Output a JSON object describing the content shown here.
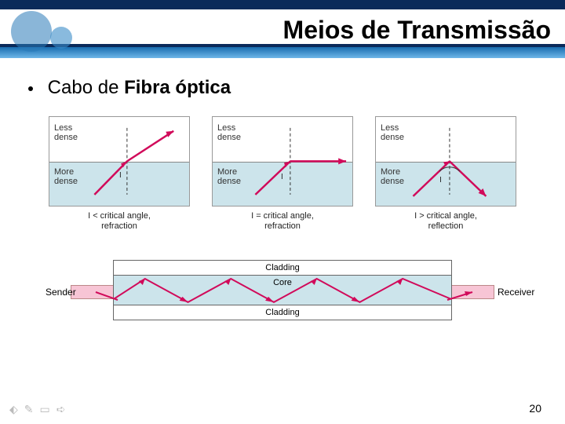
{
  "header": {
    "title": "Meios de Transmissão",
    "band_colors": {
      "top": "#0a2a5a",
      "grad_from": "#0b62a8",
      "grad_to": "#6fb7e8",
      "accent": "#e8f2fb"
    }
  },
  "bullet": {
    "prefix": "Cabo de ",
    "bold": "Fibra óptica"
  },
  "panels": [
    {
      "less_label": "Less\ndense",
      "more_label": "More\ndense",
      "caption_line1": "I < critical angle,",
      "caption_line2": "refraction",
      "angle_marker": "I",
      "ray": {
        "in_angle_deg": 65,
        "out_angle_deg": 28,
        "color": "#d10a5a",
        "has_arc": false
      }
    },
    {
      "less_label": "Less\ndense",
      "more_label": "More\ndense",
      "caption_line1": "I = critical angle,",
      "caption_line2": "refraction",
      "angle_marker": "I",
      "ray": {
        "in_angle_deg": 52,
        "out_angle_deg": 0,
        "color": "#d10a5a",
        "has_arc": false
      }
    },
    {
      "less_label": "Less\ndense",
      "more_label": "More\ndense",
      "caption_line1": "I > critical angle,",
      "caption_line2": "reflection",
      "angle_marker": "I",
      "ray": {
        "in_angle_deg": 42,
        "out_angle_deg": -42,
        "color": "#d10a5a",
        "has_arc": true
      }
    }
  ],
  "fiber": {
    "cladding_label": "Cladding",
    "core_label": "Core",
    "sender_label": "Sender",
    "receiver_label": "Receiver",
    "ray_color": "#d10a5a",
    "core_bg": "#cce4eb",
    "endbox_bg": "#f7c5d5"
  },
  "page_number": "20",
  "nav": {
    "icons": [
      "⬖",
      "✎",
      "▭",
      "➪"
    ]
  }
}
